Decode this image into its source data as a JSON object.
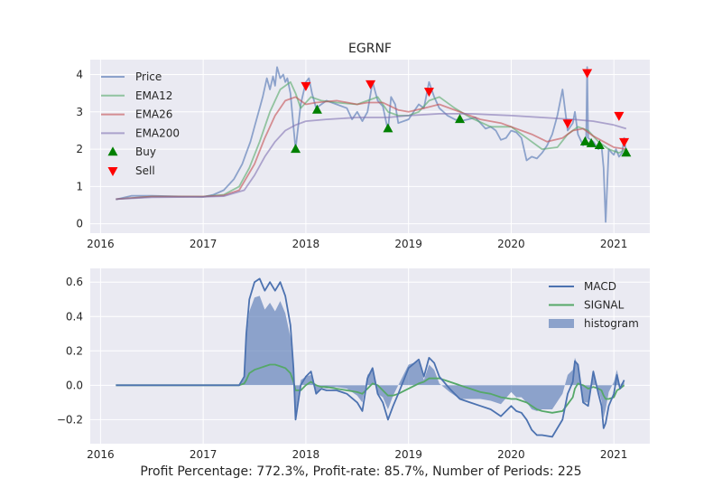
{
  "caption": "Profit Percentage: 772.3%, Profit-rate: 85.7%, Number of Periods: 225",
  "colors": {
    "axes_bg": "#EAEAF2",
    "grid": "#FFFFFF",
    "price": "#4C72B0",
    "ema12": "#55A868",
    "ema26": "#C44E52",
    "ema200": "#8172B2",
    "buy": "#008000",
    "sell": "#FF0000",
    "macd": "#4C72B0",
    "signal": "#55A868",
    "histogram": "#4C72B0"
  },
  "chart_data": [
    {
      "type": "line",
      "title": "EGRNF",
      "xlabel": "",
      "ylabel": "",
      "xlim": [
        2015.9,
        2021.35
      ],
      "ylim": [
        -0.25,
        4.4
      ],
      "xticks": [
        2016,
        2017,
        2018,
        2019,
        2020,
        2021
      ],
      "xtick_labels": [
        "2016",
        "2017",
        "2018",
        "2019",
        "2020",
        "2021"
      ],
      "yticks": [
        0,
        1,
        2,
        3,
        4
      ],
      "ytick_labels": [
        "0",
        "1",
        "2",
        "3",
        "4"
      ],
      "grid": true,
      "legend": "upper left",
      "series": [
        {
          "name": "Price",
          "style": "line",
          "color": "#4C72B0",
          "opacity": 0.6,
          "x": [
            2016.15,
            2016.3,
            2016.5,
            2016.8,
            2017.0,
            2017.1,
            2017.2,
            2017.3,
            2017.38,
            2017.42,
            2017.46,
            2017.5,
            2017.55,
            2017.58,
            2017.62,
            2017.65,
            2017.68,
            2017.7,
            2017.72,
            2017.75,
            2017.78,
            2017.8,
            2017.82,
            2017.85,
            2017.88,
            2017.9,
            2017.95,
            2018.0,
            2018.03,
            2018.06,
            2018.1,
            2018.15,
            2018.2,
            2018.3,
            2018.4,
            2018.45,
            2018.5,
            2018.55,
            2018.6,
            2018.65,
            2018.7,
            2018.75,
            2018.8,
            2018.83,
            2018.87,
            2018.9,
            2019.0,
            2019.05,
            2019.1,
            2019.15,
            2019.2,
            2019.25,
            2019.3,
            2019.38,
            2019.45,
            2019.5,
            2019.58,
            2019.65,
            2019.7,
            2019.75,
            2019.8,
            2019.85,
            2019.9,
            2019.95,
            2020.0,
            2020.05,
            2020.1,
            2020.15,
            2020.2,
            2020.25,
            2020.3,
            2020.35,
            2020.4,
            2020.45,
            2020.5,
            2020.55,
            2020.6,
            2020.62,
            2020.65,
            2020.7,
            2020.73,
            2020.74,
            2020.75,
            2020.8,
            2020.85,
            2020.88,
            2020.9,
            2020.92,
            2020.95,
            2020.98,
            2021.0,
            2021.02,
            2021.05,
            2021.08,
            2021.1,
            2021.12
          ],
          "y": [
            0.65,
            0.75,
            0.75,
            0.73,
            0.72,
            0.78,
            0.9,
            1.2,
            1.6,
            1.9,
            2.2,
            2.6,
            3.1,
            3.4,
            3.9,
            3.6,
            3.95,
            3.7,
            4.2,
            3.9,
            4.0,
            3.8,
            3.9,
            3.5,
            2.6,
            2.0,
            3.2,
            3.8,
            3.9,
            3.5,
            3.1,
            3.2,
            3.3,
            3.2,
            3.1,
            2.8,
            3.0,
            2.75,
            3.0,
            3.8,
            3.3,
            3.15,
            2.5,
            3.4,
            3.2,
            2.7,
            2.8,
            3.0,
            3.2,
            3.1,
            3.8,
            3.4,
            3.1,
            2.9,
            2.8,
            2.75,
            2.8,
            2.85,
            2.7,
            2.55,
            2.6,
            2.5,
            2.25,
            2.3,
            2.5,
            2.45,
            2.3,
            1.7,
            1.8,
            1.75,
            1.9,
            2.1,
            2.4,
            2.9,
            3.6,
            2.5,
            2.7,
            3.0,
            2.4,
            2.1,
            2.3,
            4.2,
            2.3,
            2.2,
            2.0,
            2.1,
            1.5,
            0.05,
            2.0,
            1.9,
            1.85,
            2.0,
            1.8,
            1.9,
            2.3,
            1.9
          ]
        },
        {
          "name": "EMA12",
          "style": "line",
          "color": "#55A868",
          "opacity": 0.6,
          "x": [
            2016.15,
            2016.5,
            2017.0,
            2017.2,
            2017.35,
            2017.45,
            2017.55,
            2017.65,
            2017.75,
            2017.85,
            2017.9,
            2017.95,
            2018.05,
            2018.15,
            2018.3,
            2018.5,
            2018.6,
            2018.7,
            2018.8,
            2018.9,
            2019.0,
            2019.1,
            2019.2,
            2019.3,
            2019.45,
            2019.6,
            2019.8,
            2020.0,
            2020.15,
            2020.3,
            2020.45,
            2020.55,
            2020.65,
            2020.75,
            2020.85,
            2020.95,
            2021.05,
            2021.12
          ],
          "y": [
            0.66,
            0.73,
            0.73,
            0.78,
            1.0,
            1.5,
            2.2,
            3.0,
            3.6,
            3.8,
            3.5,
            3.1,
            3.4,
            3.3,
            3.25,
            3.2,
            3.3,
            3.4,
            3.0,
            2.9,
            2.9,
            3.0,
            3.3,
            3.4,
            3.1,
            2.85,
            2.6,
            2.6,
            2.3,
            2.0,
            2.05,
            2.4,
            2.6,
            2.5,
            2.2,
            2.0,
            1.9,
            2.0
          ]
        },
        {
          "name": "EMA26",
          "style": "line",
          "color": "#C44E52",
          "opacity": 0.6,
          "x": [
            2016.15,
            2016.5,
            2017.0,
            2017.2,
            2017.35,
            2017.5,
            2017.6,
            2017.7,
            2017.8,
            2017.9,
            2018.0,
            2018.1,
            2018.3,
            2018.5,
            2018.6,
            2018.75,
            2018.9,
            2019.0,
            2019.15,
            2019.3,
            2019.5,
            2019.7,
            2019.9,
            2020.0,
            2020.2,
            2020.35,
            2020.5,
            2020.6,
            2020.7,
            2020.8,
            2020.9,
            2021.0,
            2021.12
          ],
          "y": [
            0.66,
            0.73,
            0.73,
            0.76,
            0.9,
            1.6,
            2.3,
            2.9,
            3.3,
            3.4,
            3.2,
            3.25,
            3.3,
            3.2,
            3.25,
            3.25,
            3.05,
            3.0,
            3.1,
            3.2,
            3.0,
            2.8,
            2.7,
            2.6,
            2.4,
            2.2,
            2.3,
            2.5,
            2.55,
            2.35,
            2.2,
            2.05,
            2.0
          ]
        },
        {
          "name": "EMA200",
          "style": "line",
          "color": "#8172B2",
          "opacity": 0.6,
          "x": [
            2016.15,
            2016.5,
            2017.0,
            2017.2,
            2017.4,
            2017.5,
            2017.6,
            2017.7,
            2017.8,
            2017.9,
            2018.0,
            2018.2,
            2018.5,
            2018.8,
            2019.0,
            2019.3,
            2019.6,
            2020.0,
            2020.3,
            2020.6,
            2020.8,
            2021.0,
            2021.12
          ],
          "y": [
            0.66,
            0.71,
            0.72,
            0.74,
            0.9,
            1.3,
            1.8,
            2.2,
            2.5,
            2.65,
            2.75,
            2.8,
            2.85,
            2.85,
            2.9,
            2.95,
            2.95,
            2.9,
            2.85,
            2.8,
            2.75,
            2.65,
            2.55
          ]
        },
        {
          "name": "Buy",
          "style": "marker-up",
          "color": "#008000",
          "x": [
            2017.9,
            2018.11,
            2018.8,
            2019.5,
            2020.72,
            2020.78,
            2020.86,
            2021.12
          ],
          "y": [
            2.0,
            3.05,
            2.55,
            2.8,
            2.2,
            2.15,
            2.1,
            1.9
          ]
        },
        {
          "name": "Sell",
          "style": "marker-down",
          "color": "#FF0000",
          "x": [
            2018.0,
            2018.63,
            2019.2,
            2020.55,
            2020.74,
            2021.05,
            2021.1
          ],
          "y": [
            3.7,
            3.75,
            3.55,
            2.7,
            4.05,
            2.9,
            2.2
          ]
        }
      ]
    },
    {
      "type": "line",
      "title": "",
      "xlabel": "",
      "ylabel": "",
      "xlim": [
        2015.9,
        2021.35
      ],
      "ylim": [
        -0.34,
        0.68
      ],
      "xticks": [
        2016,
        2017,
        2018,
        2019,
        2020,
        2021
      ],
      "xtick_labels": [
        "2016",
        "2017",
        "2018",
        "2019",
        "2020",
        "2021"
      ],
      "yticks": [
        -0.2,
        0.0,
        0.2,
        0.4,
        0.6
      ],
      "ytick_labels": [
        "−0.2",
        "0.0",
        "0.2",
        "0.4",
        "0.6"
      ],
      "grid": true,
      "legend": "upper right",
      "x": [
        2016.15,
        2017.0,
        2017.35,
        2017.4,
        2017.42,
        2017.45,
        2017.5,
        2017.55,
        2017.6,
        2017.65,
        2017.7,
        2017.75,
        2017.8,
        2017.85,
        2017.88,
        2017.9,
        2017.95,
        2018.0,
        2018.05,
        2018.1,
        2018.15,
        2018.2,
        2018.3,
        2018.4,
        2018.5,
        2018.55,
        2018.6,
        2018.65,
        2018.7,
        2018.75,
        2018.8,
        2018.85,
        2018.9,
        2019.0,
        2019.1,
        2019.15,
        2019.2,
        2019.25,
        2019.3,
        2019.4,
        2019.5,
        2019.6,
        2019.7,
        2019.8,
        2019.9,
        2020.0,
        2020.05,
        2020.1,
        2020.15,
        2020.2,
        2020.25,
        2020.3,
        2020.4,
        2020.5,
        2020.55,
        2020.6,
        2020.62,
        2020.65,
        2020.7,
        2020.75,
        2020.8,
        2020.85,
        2020.88,
        2020.9,
        2020.92,
        2020.95,
        2021.0,
        2021.03,
        2021.06,
        2021.1
      ],
      "series": [
        {
          "name": "MACD",
          "color": "#4C72B0",
          "values": [
            0.0,
            0.0,
            0.0,
            0.05,
            0.3,
            0.5,
            0.6,
            0.62,
            0.55,
            0.6,
            0.55,
            0.6,
            0.52,
            0.35,
            0.1,
            -0.2,
            0.0,
            0.05,
            0.08,
            -0.05,
            -0.02,
            -0.03,
            -0.03,
            -0.05,
            -0.1,
            -0.15,
            0.04,
            0.1,
            -0.05,
            -0.1,
            -0.2,
            -0.12,
            -0.05,
            0.1,
            0.15,
            0.05,
            0.16,
            0.13,
            0.05,
            -0.02,
            -0.08,
            -0.1,
            -0.12,
            -0.14,
            -0.18,
            -0.12,
            -0.15,
            -0.16,
            -0.2,
            -0.26,
            -0.29,
            -0.29,
            -0.3,
            -0.2,
            -0.05,
            0.02,
            0.14,
            0.12,
            -0.1,
            -0.12,
            0.08,
            -0.05,
            -0.12,
            -0.25,
            -0.22,
            -0.12,
            -0.05,
            0.06,
            -0.02,
            0.03
          ]
        },
        {
          "name": "SIGNAL",
          "color": "#55A868",
          "values": [
            0.0,
            0.0,
            0.0,
            0.01,
            0.03,
            0.07,
            0.09,
            0.1,
            0.11,
            0.12,
            0.12,
            0.11,
            0.1,
            0.07,
            0.02,
            -0.03,
            -0.03,
            0.0,
            0.02,
            0.0,
            -0.01,
            -0.01,
            -0.02,
            -0.03,
            -0.04,
            -0.05,
            -0.02,
            0.01,
            0.0,
            -0.03,
            -0.06,
            -0.06,
            -0.05,
            -0.02,
            0.01,
            0.02,
            0.04,
            0.04,
            0.04,
            0.02,
            0.0,
            -0.02,
            -0.04,
            -0.05,
            -0.07,
            -0.08,
            -0.08,
            -0.09,
            -0.1,
            -0.12,
            -0.14,
            -0.15,
            -0.16,
            -0.15,
            -0.11,
            -0.07,
            -0.02,
            0.01,
            0.0,
            -0.02,
            -0.01,
            -0.02,
            -0.03,
            -0.06,
            -0.08,
            -0.08,
            -0.07,
            -0.03,
            -0.02,
            0.0
          ]
        }
      ],
      "histogram": {
        "name": "histogram",
        "color": "#4C72B0",
        "opacity": 0.6,
        "values_rule": "MACD - SIGNAL"
      }
    }
  ]
}
